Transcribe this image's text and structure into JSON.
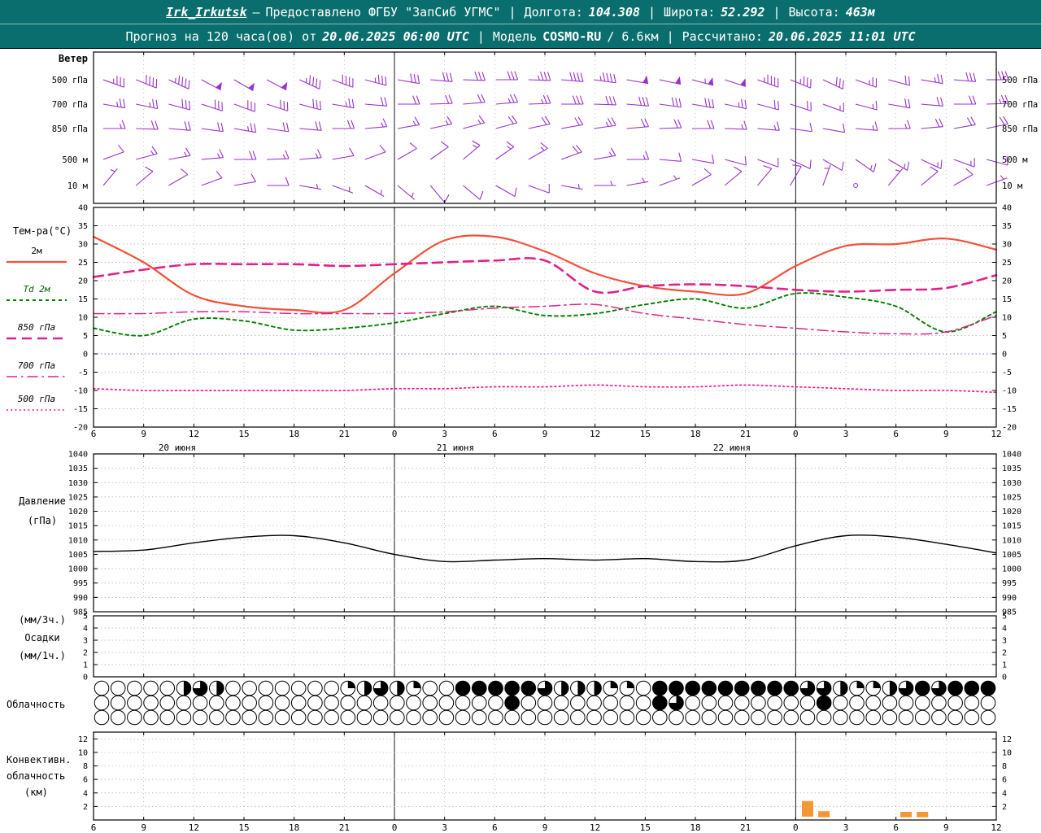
{
  "header": {
    "row1": {
      "station": "Irk_Irkutsk",
      "dash": "—",
      "provider": "Предоставлено ФГБУ \"ЗапСиб УГМС\"",
      "sep": "|",
      "lon_label": "Долгота:",
      "lon_value": "104.308",
      "lat_label": "Широта:",
      "lat_value": "52.292",
      "alt_label": "Высота:",
      "alt_value": "463м"
    },
    "row2": {
      "forecast_label": "Прогноз на 120 часа(ов) от",
      "run_time": "20.06.2025 06:00 UTC",
      "sep": "|",
      "model_label": "Модель",
      "model_name": "COSMO-RU",
      "model_grid": "/ 6.6км",
      "calc_label": "Рассчитано:",
      "calc_time": "20.06.2025 11:01 UTC"
    }
  },
  "axis": {
    "hour_labels": [
      "6",
      "9",
      "12",
      "15",
      "18",
      "21",
      "0",
      "3",
      "6",
      "9",
      "12",
      "15",
      "18",
      "21",
      "0",
      "3",
      "6",
      "9",
      "12"
    ],
    "dates": [
      "20 июня",
      "21 июня",
      "22 июня"
    ],
    "day_boundary_ticks": [
      6,
      14
    ]
  },
  "chart_data": [
    {
      "id": "wind",
      "type": "wind-barbs",
      "title": "Ветер",
      "color": "#9932cc",
      "levels": [
        {
          "key": "500hPa",
          "label": "500 гПа",
          "speeds": [
            18,
            20,
            22,
            24,
            26,
            25,
            22,
            20,
            18,
            16,
            15,
            14,
            16,
            18,
            20,
            22,
            24,
            26,
            27,
            25,
            22,
            18,
            15,
            12,
            10,
            12,
            14,
            16
          ],
          "dirs": [
            290,
            292,
            295,
            298,
            300,
            298,
            295,
            290,
            285,
            280,
            275,
            272,
            270,
            272,
            275,
            278,
            280,
            282,
            285,
            288,
            290,
            292,
            295,
            290,
            285,
            280,
            275,
            270
          ]
        },
        {
          "key": "700hPa",
          "label": "700 гПа",
          "speeds": [
            12,
            13,
            14,
            15,
            16,
            15,
            14,
            12,
            11,
            10,
            10,
            11,
            12,
            13,
            14,
            15,
            16,
            15,
            14,
            12,
            10,
            9,
            8,
            8,
            9,
            10,
            11,
            12
          ],
          "dirs": [
            280,
            282,
            285,
            288,
            290,
            288,
            285,
            280,
            275,
            270,
            268,
            265,
            265,
            268,
            270,
            272,
            275,
            278,
            280,
            282,
            285,
            288,
            290,
            285,
            280,
            275,
            270,
            268
          ]
        },
        {
          "key": "850hPa",
          "label": "850 гПа",
          "speeds": [
            8,
            9,
            10,
            11,
            12,
            11,
            10,
            9,
            8,
            7,
            7,
            8,
            9,
            10,
            11,
            12,
            11,
            10,
            9,
            8,
            7,
            6,
            6,
            7,
            8,
            9,
            10,
            10
          ],
          "dirs": [
            270,
            272,
            275,
            278,
            280,
            278,
            275,
            270,
            265,
            260,
            258,
            255,
            255,
            258,
            260,
            262,
            265,
            268,
            270,
            272,
            275,
            278,
            280,
            275,
            270,
            265,
            260,
            258
          ]
        },
        {
          "key": "500m",
          "label": "500 м",
          "speeds": [
            6,
            7,
            8,
            8,
            9,
            8,
            7,
            6,
            5,
            5,
            6,
            7,
            8,
            8,
            9,
            8,
            7,
            6,
            5,
            4,
            4,
            5,
            6,
            7,
            8,
            8,
            7,
            6
          ],
          "dirs": [
            250,
            255,
            260,
            265,
            270,
            268,
            265,
            260,
            250,
            240,
            235,
            230,
            235,
            240,
            250,
            260,
            270,
            275,
            280,
            285,
            290,
            295,
            300,
            305,
            300,
            295,
            290,
            285
          ]
        },
        {
          "key": "10m",
          "label": "10 м",
          "speeds": [
            3,
            4,
            4,
            5,
            5,
            4,
            3,
            2,
            2,
            3,
            4,
            5,
            5,
            4,
            3,
            2,
            2,
            3,
            4,
            5,
            5,
            4,
            3,
            0,
            3,
            4,
            4,
            3
          ],
          "dirs": [
            220,
            230,
            240,
            250,
            260,
            270,
            280,
            290,
            300,
            310,
            320,
            310,
            300,
            290,
            280,
            270,
            260,
            250,
            240,
            230,
            220,
            210,
            200,
            210,
            220,
            230,
            240,
            250
          ]
        }
      ]
    },
    {
      "id": "temperature",
      "type": "line",
      "ylabel": "Тем-ра(°C)",
      "ylim": [
        -20,
        40
      ],
      "yticks": [
        40,
        35,
        30,
        25,
        20,
        15,
        10,
        5,
        0,
        -5,
        -10,
        -15,
        -20
      ],
      "series": [
        {
          "key": "t2m",
          "name": "2м",
          "color": "#f4503a",
          "style": "solid",
          "width": 2.2,
          "values": [
            32,
            25,
            16,
            13,
            12,
            12,
            22,
            31,
            32,
            28,
            22,
            18.5,
            17,
            16.5,
            24,
            29.5,
            30,
            31.5,
            28.5
          ]
        },
        {
          "key": "td2m",
          "name": "Td 2м",
          "color": "#008000",
          "style": "shortdash",
          "width": 1.9,
          "values": [
            7,
            5,
            9.5,
            9,
            6.5,
            7,
            8.5,
            11,
            13,
            10.5,
            11,
            13.5,
            15,
            12.5,
            16.5,
            15.5,
            13,
            6,
            11.5
          ]
        },
        {
          "key": "t850",
          "name": "850 гПа",
          "color": "#e0218a",
          "style": "dashed",
          "width": 2.6,
          "values": [
            21,
            23,
            24.5,
            24.5,
            24.5,
            24,
            24.5,
            25,
            25.5,
            25.5,
            17,
            18.5,
            19,
            18.5,
            17.5,
            17,
            17.5,
            18,
            21.5
          ]
        },
        {
          "key": "t700",
          "name": "700 гПа",
          "color": "#e0218a",
          "style": "dashdot",
          "width": 1.5,
          "values": [
            11,
            11,
            11.5,
            11.5,
            11,
            11,
            11,
            11.5,
            12.5,
            13,
            13.5,
            11,
            9.5,
            8,
            7,
            6,
            5.5,
            6,
            10.5
          ]
        },
        {
          "key": "t500",
          "name": "500 гПа",
          "color": "#ff1493",
          "style": "dotted",
          "width": 1.7,
          "values": [
            -9.5,
            -10,
            -10,
            -10,
            -10,
            -10,
            -9.5,
            -9.5,
            -9,
            -9,
            -8.5,
            -9,
            -9,
            -8.5,
            -9,
            -9.5,
            -10,
            -10,
            -10.5
          ]
        }
      ]
    },
    {
      "id": "pressure",
      "type": "line",
      "ylabel_lines": [
        "Давление",
        "(гПа)"
      ],
      "ylim": [
        985,
        1040
      ],
      "yticks": [
        1040,
        1035,
        1030,
        1025,
        1020,
        1015,
        1010,
        1005,
        1000,
        995,
        990,
        985
      ],
      "series": [
        {
          "key": "pressure",
          "name": "Давление",
          "color": "#000000",
          "style": "solid",
          "width": 1.4,
          "values": [
            1006,
            1006.5,
            1009,
            1011,
            1011.5,
            1009,
            1005,
            1002.5,
            1003,
            1003.5,
            1003,
            1003.5,
            1002.5,
            1003,
            1008,
            1011.5,
            1011,
            1008.5,
            1005.5
          ]
        }
      ]
    },
    {
      "id": "precip",
      "type": "bar",
      "ylabel_lines": [
        "(мм/3ч.)",
        "Осадки",
        "(мм/1ч.)"
      ],
      "ylim": [
        0,
        5
      ],
      "yticks": [
        5,
        4,
        3,
        2,
        1,
        0
      ],
      "color": "#2e8b57",
      "bars": []
    },
    {
      "id": "cloud",
      "type": "cloud-cover",
      "ylabel": "Облачность",
      "okta_rows": [
        [
          0,
          0,
          0,
          0,
          0,
          4,
          6,
          4,
          0,
          0,
          0,
          0,
          0,
          0,
          0,
          2,
          4,
          6,
          4,
          2,
          0,
          0,
          8,
          8,
          8,
          8,
          8,
          6,
          4,
          4,
          4,
          2,
          2,
          0,
          8,
          8,
          8,
          8,
          8,
          8,
          8,
          8,
          8,
          6,
          6,
          4,
          2,
          2,
          4,
          6,
          8,
          6,
          8,
          8,
          8
        ],
        [
          0,
          0,
          0,
          0,
          0,
          0,
          0,
          0,
          0,
          0,
          0,
          0,
          0,
          0,
          0,
          0,
          0,
          0,
          0,
          0,
          0,
          0,
          0,
          0,
          0,
          8,
          0,
          0,
          0,
          0,
          0,
          0,
          0,
          0,
          8,
          6,
          0,
          0,
          0,
          0,
          0,
          0,
          0,
          0,
          8,
          0,
          0,
          0,
          0,
          0,
          0,
          0,
          0,
          0,
          0
        ],
        [
          0,
          0,
          0,
          0,
          0,
          0,
          0,
          0,
          0,
          0,
          0,
          0,
          0,
          0,
          0,
          0,
          0,
          0,
          0,
          0,
          0,
          0,
          0,
          0,
          0,
          0,
          0,
          0,
          0,
          0,
          0,
          0,
          0,
          0,
          0,
          0,
          0,
          0,
          0,
          0,
          0,
          0,
          0,
          0,
          0,
          0,
          0,
          0,
          0,
          0,
          0,
          0,
          0,
          0,
          0
        ]
      ]
    },
    {
      "id": "convective",
      "type": "bar",
      "ylabel_lines": [
        "Конвективн.",
        "облачность",
        "(км)"
      ],
      "ylim": [
        0,
        13
      ],
      "yticks": [
        12,
        10,
        8,
        6,
        4,
        2
      ],
      "color": "#f59533",
      "bars": [
        {
          "i": 43,
          "base": 0.5,
          "top": 2.8
        },
        {
          "i": 44,
          "base": 0.4,
          "top": 1.3
        },
        {
          "i": 49,
          "base": 0.4,
          "top": 1.2
        },
        {
          "i": 50,
          "base": 0.4,
          "top": 1.2
        }
      ]
    }
  ]
}
